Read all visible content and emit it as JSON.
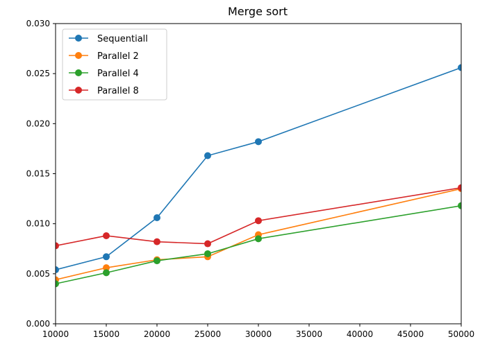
{
  "chart_data": {
    "type": "line",
    "title": "Merge sort",
    "xlabel": "",
    "ylabel": "",
    "x": [
      10000,
      15000,
      20000,
      25000,
      30000,
      50000
    ],
    "xlim": [
      10000,
      50000
    ],
    "ylim": [
      0.0,
      0.03
    ],
    "x_ticks": [
      "10000",
      "15000",
      "20000",
      "25000",
      "30000",
      "35000",
      "40000",
      "45000",
      "50000"
    ],
    "y_ticks": [
      "0.000",
      "0.005",
      "0.010",
      "0.015",
      "0.020",
      "0.025",
      "0.030"
    ],
    "grid": false,
    "legend_position": "top-left",
    "series": [
      {
        "name": "Sequentiall",
        "color": "#1f77b4",
        "values": [
          0.0054,
          0.0067,
          0.0106,
          0.0168,
          0.0182,
          0.0256
        ]
      },
      {
        "name": "Parallel 2",
        "color": "#ff7f0e",
        "values": [
          0.0044,
          0.0056,
          0.0064,
          0.0067,
          0.0089,
          0.0135
        ]
      },
      {
        "name": "Parallel 4",
        "color": "#2ca02c",
        "values": [
          0.004,
          0.0051,
          0.0063,
          0.007,
          0.0085,
          0.0118
        ]
      },
      {
        "name": "Parallel 8",
        "color": "#d62728",
        "values": [
          0.0078,
          0.0088,
          0.0082,
          0.008,
          0.0103,
          0.0136
        ]
      }
    ]
  }
}
